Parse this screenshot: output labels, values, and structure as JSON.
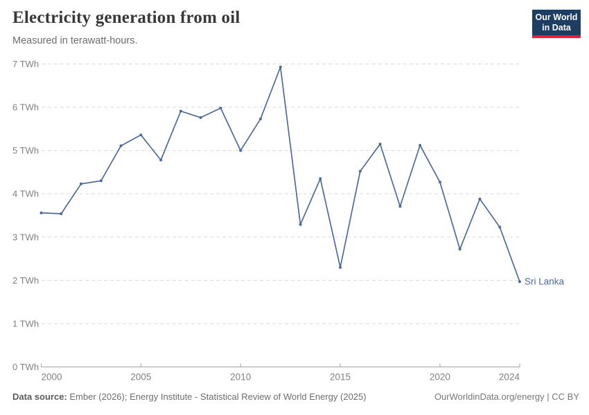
{
  "header": {
    "title": "Electricity generation from oil",
    "subtitle": "Measured in terawatt-hours.",
    "logo": {
      "line1": "Our World",
      "line2": "in Data"
    }
  },
  "chart_data": {
    "type": "line",
    "title": "Electricity generation from oil",
    "subtitle": "Measured in terawatt-hours.",
    "xlabel": "",
    "ylabel": "TWh",
    "xlim": [
      2000,
      2024
    ],
    "ylim": [
      0,
      7
    ],
    "grid": "horizontal-dashed",
    "legend_position": "end-of-line-label",
    "xticks": [
      2000,
      2005,
      2010,
      2015,
      2020,
      2024
    ],
    "yticks": [
      {
        "value": 0,
        "label": "0 TWh"
      },
      {
        "value": 1,
        "label": "1 TWh"
      },
      {
        "value": 2,
        "label": "2 TWh"
      },
      {
        "value": 3,
        "label": "3 TWh"
      },
      {
        "value": 4,
        "label": "4 TWh"
      },
      {
        "value": 5,
        "label": "5 TWh"
      },
      {
        "value": 6,
        "label": "6 TWh"
      },
      {
        "value": 7,
        "label": "7 TWh"
      }
    ],
    "series": [
      {
        "name": "Sri Lanka",
        "x": [
          2000,
          2001,
          2002,
          2003,
          2004,
          2005,
          2006,
          2007,
          2008,
          2009,
          2010,
          2011,
          2012,
          2013,
          2014,
          2015,
          2016,
          2017,
          2018,
          2019,
          2020,
          2021,
          2022,
          2023,
          2024
        ],
        "values": [
          3.56,
          3.54,
          4.23,
          4.3,
          5.11,
          5.36,
          4.78,
          5.91,
          5.76,
          5.98,
          5.0,
          5.73,
          6.93,
          3.29,
          4.35,
          2.3,
          4.52,
          5.15,
          3.71,
          5.12,
          4.27,
          2.72,
          3.88,
          3.23,
          1.97
        ]
      }
    ],
    "colors": {
      "line": "#4C6A9C",
      "grid": "#d9d9d9",
      "axis": "#a1a1a1",
      "tick_text": "#808080"
    }
  },
  "footer": {
    "source_label": "Data source:",
    "source_text": "Ember (2026); Energy Institute - Statistical Review of World Energy (2025)",
    "attribution": "OurWorldinData.org/energy | CC BY"
  }
}
